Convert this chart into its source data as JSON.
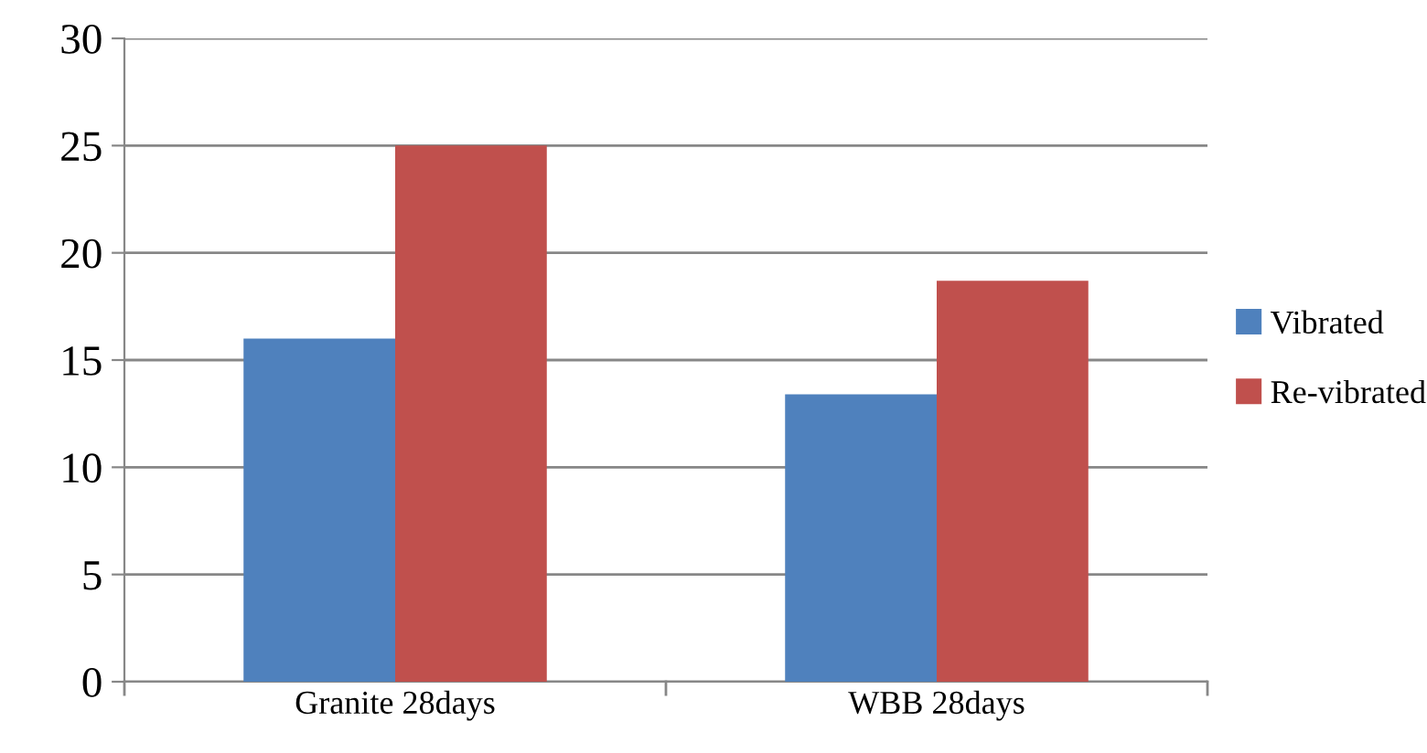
{
  "chart_data": {
    "type": "bar",
    "categories": [
      "Granite 28days",
      "WBB 28days"
    ],
    "series": [
      {
        "name": "Vibrated",
        "color": "#4f81bd",
        "values": [
          16.0,
          13.4
        ]
      },
      {
        "name": "Re-vibrated",
        "color": "#c0504d",
        "values": [
          25.0,
          18.7
        ]
      }
    ],
    "ylim": [
      0,
      30
    ],
    "yticks": [
      0,
      5,
      10,
      15,
      20,
      25,
      30
    ],
    "grid": "y",
    "legend": "right"
  }
}
